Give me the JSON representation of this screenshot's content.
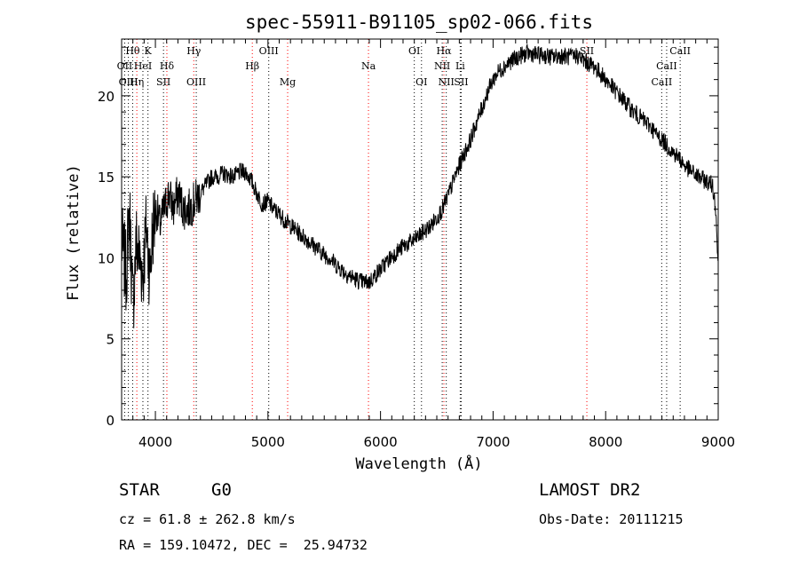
{
  "chart_data": {
    "type": "line",
    "title": "spec-55911-B91105_sp02-066.fits",
    "xlabel": "Wavelength (Å)",
    "ylabel": "Flux (relative)",
    "xlim": [
      3700,
      9000
    ],
    "ylim": [
      0,
      23.5
    ],
    "xticks": [
      4000,
      5000,
      6000,
      7000,
      8000,
      9000
    ],
    "yticks": [
      0,
      5,
      10,
      15,
      20
    ],
    "grid": false,
    "series": [
      {
        "x": [
          3700,
          3740,
          3770,
          3800,
          3830,
          3860,
          3890,
          3920,
          3950,
          3980,
          4010,
          4040,
          4080,
          4120,
          4160,
          4200,
          4250,
          4300,
          4350,
          4400,
          4450,
          4500,
          4550,
          4600,
          4650,
          4700,
          4750,
          4800,
          4850,
          4900,
          4950,
          5000,
          5050,
          5100,
          5150,
          5200,
          5250,
          5300,
          5350,
          5400,
          5450,
          5500,
          5550,
          5600,
          5650,
          5700,
          5750,
          5800,
          5850,
          5900,
          5950,
          6000,
          6050,
          6100,
          6150,
          6200,
          6250,
          6300,
          6350,
          6400,
          6450,
          6500,
          6550,
          6580,
          6620,
          6660,
          6700,
          6750,
          6800,
          6850,
          6900,
          6950,
          7000,
          7050,
          7100,
          7150,
          7200,
          7250,
          7300,
          7350,
          7400,
          7450,
          7500,
          7550,
          7600,
          7650,
          7700,
          7750,
          7800,
          7850,
          7900,
          7950,
          8000,
          8050,
          8100,
          8150,
          8200,
          8250,
          8300,
          8350,
          8400,
          8450,
          8500,
          8550,
          8600,
          8650,
          8700,
          8750,
          8800,
          8850,
          8900,
          8950,
          8980,
          9000
        ],
        "y": [
          11,
          9,
          13,
          7,
          11,
          10,
          9,
          12,
          9,
          12,
          13,
          12,
          13,
          14,
          13,
          14,
          13,
          13,
          13.5,
          14,
          14.5,
          15,
          15,
          15.2,
          15.1,
          15,
          15.3,
          15.3,
          14.8,
          14,
          13.3,
          13.5,
          13,
          12.7,
          12.3,
          12,
          11.7,
          11.4,
          11.1,
          10.8,
          10.5,
          10.2,
          10,
          9.6,
          9.3,
          9,
          8.8,
          8.6,
          8.5,
          8.5,
          8.9,
          9.3,
          9.7,
          10.1,
          10.4,
          10.7,
          10.9,
          11.1,
          11.4,
          11.7,
          12,
          12.5,
          13,
          13.5,
          14.2,
          15,
          15.7,
          16.5,
          17.3,
          18.3,
          19.2,
          20.2,
          21,
          21.5,
          21.8,
          22.1,
          22.3,
          22.5,
          22.6,
          22.6,
          22.5,
          22.5,
          22.4,
          22.4,
          22.5,
          22.4,
          22.4,
          22.5,
          22.2,
          22,
          21.8,
          21.4,
          21,
          20.6,
          20.2,
          19.8,
          19.4,
          19,
          18.7,
          18.4,
          18.1,
          17.6,
          17.3,
          16.9,
          16.5,
          16.2,
          15.7,
          15.4,
          15.1,
          14.9,
          14.7,
          14.5,
          13,
          9
        ]
      }
    ],
    "lines": [
      {
        "label": "Hθ",
        "x": 3798,
        "color": "#000000",
        "row": 0
      },
      {
        "label": "K",
        "x": 3934,
        "color": "#000000",
        "row": 0
      },
      {
        "label": "Hγ",
        "x": 4341,
        "color": "#ff0000",
        "row": 0
      },
      {
        "label": "OIII",
        "x": 5007,
        "color": "#000000",
        "row": 0
      },
      {
        "label": "OI",
        "x": 6300,
        "color": "#000000",
        "row": 0
      },
      {
        "label": "Hα",
        "x": 6563,
        "color": "#ff0000",
        "row": 0
      },
      {
        "label": "SII",
        "x": 7833,
        "color": "#ff0000",
        "row": 0
      },
      {
        "label": "CaII",
        "x": 8662,
        "color": "#000000",
        "row": 0
      },
      {
        "label": "OII",
        "x": 3727,
        "color": "#000000",
        "row": 1
      },
      {
        "label": "HeI",
        "x": 3889,
        "color": "#000000",
        "row": 1
      },
      {
        "label": "Hδ",
        "x": 4102,
        "color": "#ff0000",
        "row": 1
      },
      {
        "label": "Hβ",
        "x": 4861,
        "color": "#ff0000",
        "row": 1
      },
      {
        "label": "Na",
        "x": 5893,
        "color": "#ff0000",
        "row": 1
      },
      {
        "label": "NII",
        "x": 6548,
        "color": "#000000",
        "row": 1
      },
      {
        "label": "Li",
        "x": 6708,
        "color": "#000000",
        "row": 1
      },
      {
        "label": "CaII",
        "x": 8542,
        "color": "#000000",
        "row": 1
      },
      {
        "label": "OIII",
        "x": 3760,
        "color": "#000000",
        "row": 2
      },
      {
        "label": "Hη",
        "x": 3835,
        "color": "#ff0000",
        "row": 2
      },
      {
        "label": "SII",
        "x": 4072,
        "color": "#000000",
        "row": 2
      },
      {
        "label": "OIII",
        "x": 4363,
        "color": "#000000",
        "row": 2
      },
      {
        "label": "Mg",
        "x": 5175,
        "color": "#ff0000",
        "row": 2
      },
      {
        "label": "OI",
        "x": 6364,
        "color": "#000000",
        "row": 2
      },
      {
        "label": "NII",
        "x": 6584,
        "color": "#000000",
        "row": 2
      },
      {
        "label": "SII",
        "x": 6717,
        "color": "#000000",
        "row": 2
      },
      {
        "label": "CaII",
        "x": 8498,
        "color": "#000000",
        "row": 2
      }
    ]
  },
  "info": {
    "object_class": "STAR",
    "subclass": "G0",
    "survey": "LAMOST DR2",
    "cz": "cz = 61.8 ± 262.8 km/s",
    "obs_date": "Obs-Date: 20111215",
    "coords": "RA = 159.10472, DEC =  25.94732"
  }
}
